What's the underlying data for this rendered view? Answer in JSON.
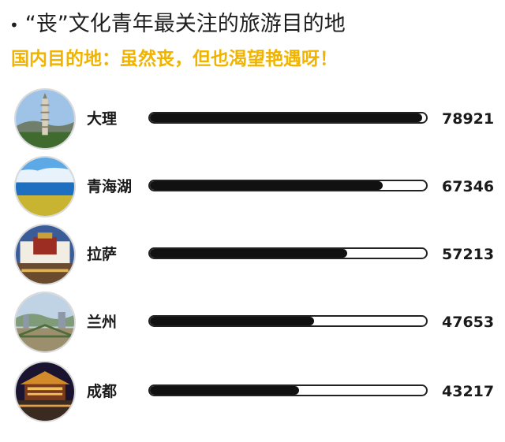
{
  "title_bullet": "•",
  "title": "“丧”文化青年最关注的旅游目的地",
  "subtitle": "国内目的地：虽然丧，但也渴望艳遇呀！",
  "chart_data": {
    "type": "bar",
    "orientation": "horizontal",
    "title": "“丧”文化青年最关注的旅游目的地",
    "subtitle": "国内目的地：虽然丧，但也渴望艳遇呀！",
    "categories": [
      "大理",
      "青海湖",
      "拉萨",
      "兰州",
      "成都"
    ],
    "values": [
      78921,
      67346,
      57213,
      47653,
      43217
    ],
    "xlim": [
      0,
      80000
    ],
    "colors": {
      "fill": "#111111",
      "track": "#ffffff",
      "subtitle": "#f0b400"
    }
  }
}
